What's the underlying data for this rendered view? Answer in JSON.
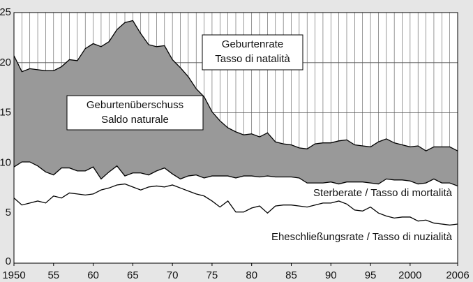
{
  "chart_data": {
    "type": "line",
    "x": [
      1950,
      1951,
      1952,
      1953,
      1954,
      1955,
      1956,
      1957,
      1958,
      1959,
      1960,
      1961,
      1962,
      1963,
      1964,
      1965,
      1966,
      1967,
      1968,
      1969,
      1970,
      1971,
      1972,
      1973,
      1974,
      1975,
      1976,
      1977,
      1978,
      1979,
      1980,
      1981,
      1982,
      1983,
      1984,
      1985,
      1986,
      1987,
      1988,
      1989,
      1990,
      1991,
      1992,
      1993,
      1994,
      1995,
      1996,
      1997,
      1998,
      1999,
      2000,
      2001,
      2002,
      2003,
      2004,
      2005,
      2006
    ],
    "series": [
      {
        "color": "#000000",
        "values": [
          20.7,
          19.1,
          19.4,
          19.3,
          19.2,
          19.2,
          19.6,
          20.3,
          20.2,
          21.4,
          21.9,
          21.6,
          22.1,
          23.3,
          24.0,
          24.2,
          22.9,
          21.8,
          21.6,
          21.7,
          20.3,
          19.5,
          18.6,
          17.4,
          16.6,
          15.1,
          14.2,
          13.5,
          13.1,
          12.8,
          12.9,
          12.6,
          13.0,
          12.1,
          11.9,
          11.8,
          11.5,
          11.4,
          11.9,
          12.0,
          12.0,
          12.2,
          12.3,
          11.8,
          11.7,
          11.6,
          12.1,
          12.4,
          12.0,
          11.8,
          11.6,
          11.7,
          11.2,
          11.6,
          11.6,
          11.6,
          11.2
        ]
      },
      {
        "name": "Sterberate / Tasso di mortalità",
        "color": "#000000",
        "values": [
          9.6,
          10.1,
          10.1,
          9.7,
          9.1,
          8.8,
          9.5,
          9.5,
          9.2,
          9.2,
          9.6,
          8.4,
          9.1,
          9.7,
          8.7,
          9.0,
          9.0,
          8.8,
          9.2,
          9.5,
          8.9,
          8.4,
          8.7,
          8.8,
          8.5,
          8.7,
          8.7,
          8.7,
          8.5,
          8.7,
          8.7,
          8.6,
          8.7,
          8.6,
          8.6,
          8.6,
          8.5,
          8.0,
          8.0,
          8.0,
          8.1,
          7.9,
          8.1,
          8.1,
          8.1,
          8.0,
          7.9,
          8.4,
          8.3,
          8.3,
          8.2,
          7.9,
          8.0,
          8.4,
          8.0,
          8.0,
          7.7
        ]
      },
      {
        "name": "Eheschließungsrate / Tasso di nuzialità",
        "color": "#000000",
        "values": [
          6.5,
          5.8,
          6.0,
          6.2,
          6.0,
          6.7,
          6.5,
          7.0,
          6.9,
          6.8,
          6.9,
          7.3,
          7.5,
          7.8,
          7.9,
          7.6,
          7.3,
          7.6,
          7.7,
          7.6,
          7.8,
          7.5,
          7.2,
          6.9,
          6.7,
          6.2,
          5.6,
          6.2,
          5.1,
          5.1,
          5.5,
          5.7,
          5.0,
          5.7,
          5.8,
          5.8,
          5.7,
          5.6,
          5.8,
          6.0,
          6.0,
          6.2,
          5.9,
          5.3,
          5.2,
          5.6,
          5.0,
          4.7,
          4.5,
          4.6,
          4.6,
          4.2,
          4.3,
          4.0,
          3.9,
          3.8,
          3.9
        ]
      }
    ],
    "surplus_color": "#999999",
    "annotations": [
      {
        "lines": [
          "Geburtenrate",
          "Tasso di natalità"
        ]
      },
      {
        "lines": [
          "Geburtenüberschuss",
          "Saldo naturale"
        ]
      }
    ],
    "xlim": [
      1950,
      2006
    ],
    "xticks": [
      1950,
      {
        "value": 1955,
        "label": "55"
      },
      {
        "value": 1960,
        "label": "60"
      },
      {
        "value": 1965,
        "label": "65"
      },
      {
        "value": 1970,
        "label": "70"
      },
      {
        "value": 1975,
        "label": "75"
      },
      {
        "value": 1980,
        "label": "80"
      },
      {
        "value": 1985,
        "label": "85"
      },
      {
        "value": 1990,
        "label": "90"
      },
      {
        "value": 1995,
        "label": "95"
      },
      2000,
      2006
    ],
    "ylim": [
      0,
      25
    ],
    "yticks": [
      0,
      5,
      10,
      15,
      20,
      25
    ],
    "grid": true
  }
}
